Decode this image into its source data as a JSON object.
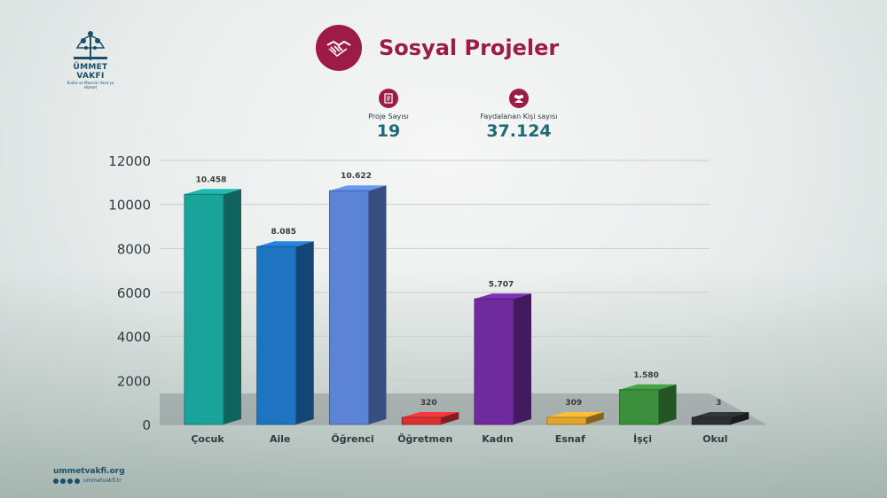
{
  "brand": {
    "name": "ÜMMET VAKFI",
    "tagline": "Kudüs ve Mescid-i Aksa'ya Hizmet"
  },
  "header": {
    "title": "Sosyal Projeler"
  },
  "stats": [
    {
      "label": "Proje Sayısı",
      "value": "19",
      "icon": "document-icon"
    },
    {
      "label": "Faydalanan Kişi sayısı",
      "value": "37.124",
      "icon": "people-icon"
    }
  ],
  "footer": {
    "site": "ummetvakfi.org",
    "handle": "ummetvakfi.tr"
  },
  "colors": {
    "accent": "#9c1c45",
    "value": "#1c6a78"
  },
  "chart_data": {
    "type": "bar",
    "categories": [
      "Çocuk",
      "Aile",
      "Öğrenci",
      "Öğretmen",
      "Kadın",
      "Esnaf",
      "İşçi",
      "Okul"
    ],
    "values": [
      10458,
      8085,
      10622,
      320,
      5707,
      309,
      1580,
      3
    ],
    "data_labels": [
      "10.458",
      "8.085",
      "10.622",
      "320",
      "5.707",
      "309",
      "1.580",
      "3"
    ],
    "bar_colors": [
      "#1aa39a",
      "#1f74c2",
      "#5b84d4",
      "#d93034",
      "#6f2b9e",
      "#e0a52e",
      "#3c8f3d",
      "#2b2f31"
    ],
    "yticks": [
      "0",
      "2000",
      "4000",
      "6000",
      "8000",
      "10000",
      "12000"
    ],
    "ylim": [
      0,
      12000
    ],
    "grid": true,
    "legend": "none"
  }
}
